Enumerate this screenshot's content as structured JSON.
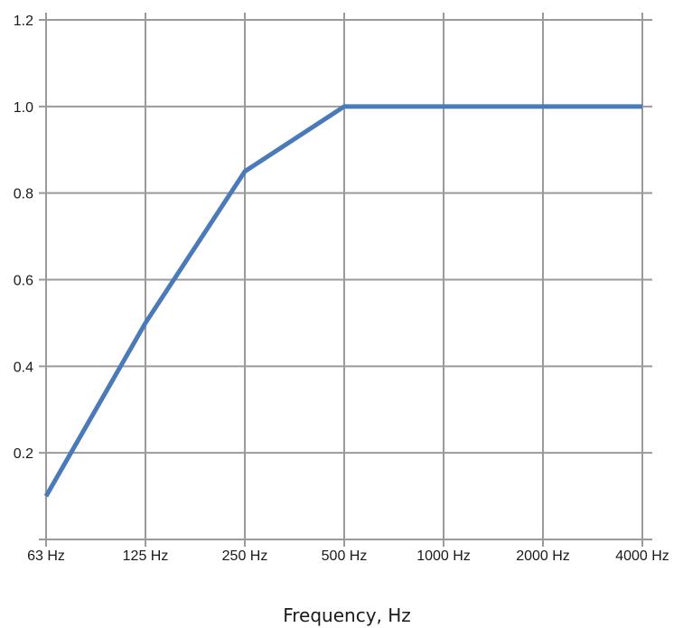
{
  "chart_data": {
    "type": "line",
    "title": "",
    "xlabel": "Frequency, Hz",
    "ylabel": "",
    "categories": [
      "63 Hz",
      "125 Hz",
      "250 Hz",
      "500 Hz",
      "1000 Hz",
      "2000 Hz",
      "4000 Hz"
    ],
    "y_ticks": [
      "0.2",
      "0.4",
      "0.6",
      "0.8",
      "1.0",
      "1.2"
    ],
    "ylim": [
      0,
      1.2
    ],
    "grid": true,
    "series": [
      {
        "values": [
          0.1,
          0.5,
          0.85,
          1.0,
          1.0,
          1.0,
          1.0
        ],
        "color": "#4a7ab8"
      }
    ]
  }
}
